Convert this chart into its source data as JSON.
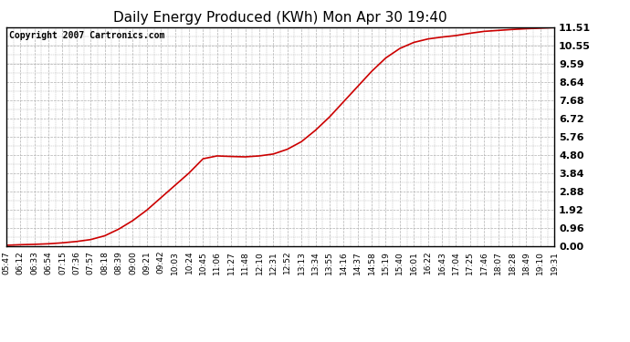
{
  "title": "Daily Energy Produced (KWh) Mon Apr 30 19:40",
  "copyright": "Copyright 2007 Cartronics.com",
  "line_color": "#cc0000",
  "background_color": "#ffffff",
  "plot_bg_color": "#ffffff",
  "grid_color": "#b0b0b0",
  "yticks": [
    0.0,
    0.96,
    1.92,
    2.88,
    3.84,
    4.8,
    5.76,
    6.72,
    7.68,
    8.64,
    9.59,
    10.55,
    11.51
  ],
  "ylim": [
    0.0,
    11.51
  ],
  "xtick_labels": [
    "05:47",
    "06:12",
    "06:33",
    "06:54",
    "07:15",
    "07:36",
    "07:57",
    "08:18",
    "08:39",
    "09:00",
    "09:21",
    "09:42",
    "10:03",
    "10:24",
    "10:45",
    "11:06",
    "11:27",
    "11:48",
    "12:10",
    "12:31",
    "12:52",
    "13:13",
    "13:34",
    "13:55",
    "14:16",
    "14:37",
    "14:58",
    "15:19",
    "15:40",
    "16:01",
    "16:22",
    "16:43",
    "17:04",
    "17:25",
    "17:46",
    "18:07",
    "18:28",
    "18:49",
    "19:10",
    "19:31"
  ],
  "data_y": [
    0.05,
    0.08,
    0.1,
    0.13,
    0.18,
    0.25,
    0.35,
    0.55,
    0.9,
    1.35,
    1.9,
    2.55,
    3.2,
    3.85,
    4.6,
    4.75,
    4.72,
    4.7,
    4.75,
    4.85,
    5.1,
    5.5,
    6.1,
    6.8,
    7.6,
    8.4,
    9.2,
    9.9,
    10.4,
    10.72,
    10.9,
    11.0,
    11.08,
    11.2,
    11.3,
    11.35,
    11.4,
    11.44,
    11.47,
    11.5
  ],
  "title_fontsize": 11,
  "copyright_fontsize": 7,
  "ytick_fontsize": 8,
  "xtick_fontsize": 6.5
}
